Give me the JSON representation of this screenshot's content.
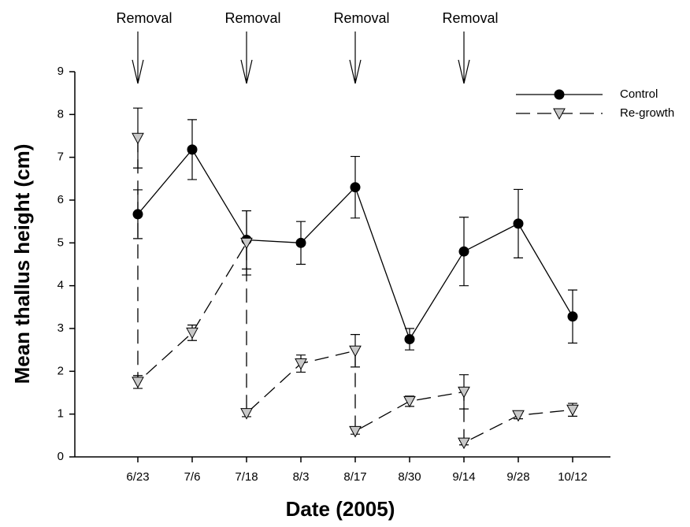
{
  "chart_data": {
    "type": "line",
    "xlabel": "Date (2005)",
    "ylabel": "Mean thallus height (cm)",
    "categories": [
      "6/23",
      "7/6",
      "7/18",
      "8/3",
      "8/17",
      "8/30",
      "9/14",
      "9/28",
      "10/12"
    ],
    "ylim": [
      0,
      9
    ],
    "yticks": [
      0,
      1,
      2,
      3,
      4,
      5,
      6,
      7,
      8,
      9
    ],
    "legend": "upper right",
    "annotations": [
      {
        "text": "Removal",
        "x": "6/23"
      },
      {
        "text": "Removal",
        "x": "7/18"
      },
      {
        "text": "Removal",
        "x": "8/17"
      },
      {
        "text": "Removal",
        "x": "9/14"
      }
    ],
    "series": [
      {
        "name": "Control",
        "color": "#000000",
        "marker": "circle",
        "linestyle": "solid",
        "x": [
          "6/23",
          "7/6",
          "7/18",
          "8/3",
          "8/17",
          "8/30",
          "9/14",
          "9/28",
          "10/12"
        ],
        "values": [
          5.67,
          7.18,
          5.07,
          5.0,
          6.3,
          2.75,
          4.8,
          5.45,
          3.28
        ],
        "errors": [
          0.57,
          0.7,
          0.68,
          0.5,
          0.72,
          0.25,
          0.8,
          0.8,
          0.62
        ]
      },
      {
        "name": "Re-growth",
        "color": "#c8c8c8",
        "marker": "triangle-down",
        "linestyle": "dashed",
        "x": [
          "6/23",
          "6/23",
          "7/6",
          "7/18",
          "7/18",
          "8/3",
          "8/17",
          "8/17",
          "8/30",
          "9/14",
          "9/14",
          "9/28",
          "10/12"
        ],
        "values": [
          7.45,
          1.75,
          2.9,
          5.0,
          1.02,
          2.18,
          2.48,
          0.6,
          1.3,
          1.52,
          0.33,
          0.97,
          1.1
        ],
        "errors": [
          0.7,
          0.15,
          0.18,
          0.75,
          0.08,
          0.2,
          0.38,
          0.07,
          0.12,
          0.4,
          0.05,
          0.08,
          0.15
        ]
      }
    ]
  }
}
